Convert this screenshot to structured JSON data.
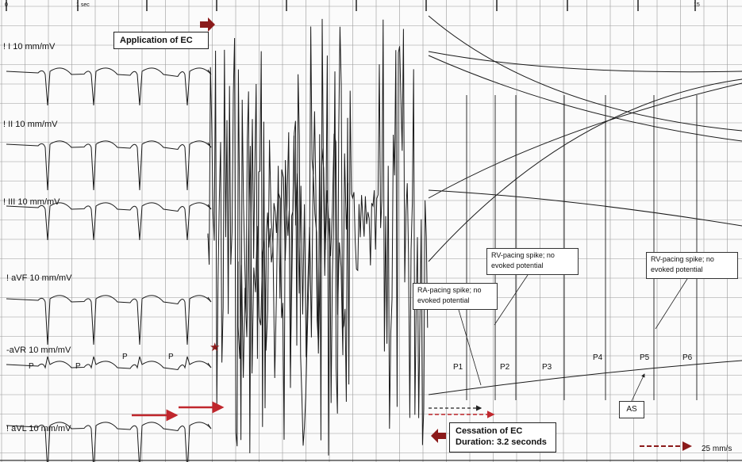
{
  "time_marks": {
    "start": "0",
    "one_sec": "1 sec",
    "end": "15"
  },
  "leads": [
    {
      "name": "I",
      "label": "! I  10 mm/mV"
    },
    {
      "name": "II",
      "label": "! II  10 mm/mV"
    },
    {
      "name": "III",
      "label": "! III  10 mm/mV"
    },
    {
      "name": "aVF",
      "label": "! aVF  10 mm/mV"
    },
    {
      "name": "aVR",
      "label": "-aVR  10 mm/mV"
    },
    {
      "name": "aVL",
      "label": "! aVL  10 mm/mV"
    }
  ],
  "annotations": {
    "application": "Application of EC",
    "cessation_line1": "Cessation of EC",
    "cessation_line2": "Duration: 3.2 seconds",
    "ra_spike_line1": "RA-pacing spike; no",
    "ra_spike_line2": "evoked potential",
    "rv_spike1_line1": "RV-pacing spike; no",
    "rv_spike1_line2": "evoked potential",
    "rv_spike2_line1": "RV-pacing spike; no",
    "rv_spike2_line2": "evoked potential",
    "as_label": "AS",
    "star_symbol": "★"
  },
  "p_waves_before": [
    "P",
    "P",
    "P",
    "P"
  ],
  "p_waves_after": [
    "P1",
    "P2",
    "P3",
    "P4",
    "P5",
    "P6"
  ],
  "paper_speed": "25 mm/s",
  "colors": {
    "grid": "#9a9a9a",
    "trace": "#1a1a1a",
    "arrow_red": "#c0272d",
    "arrow_dark_red": "#8b1a1a"
  }
}
